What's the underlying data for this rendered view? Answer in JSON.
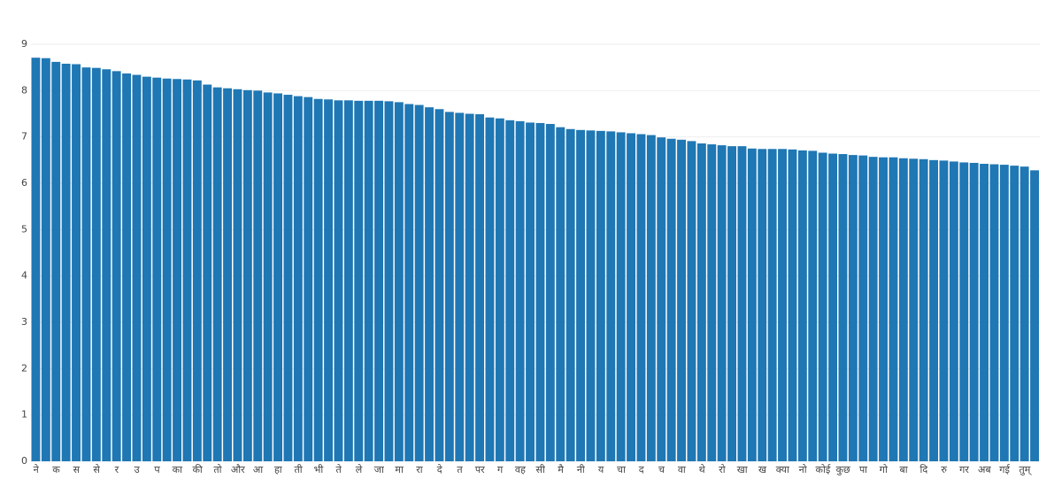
{
  "chart_data": {
    "type": "bar",
    "color": "#1f77b4",
    "grid": true,
    "ylim": [
      0,
      9
    ],
    "yticks": [
      0,
      1,
      2,
      3,
      4,
      5,
      6,
      7,
      8,
      9
    ],
    "categories": [
      "ने",
      null,
      "क",
      null,
      "स",
      null,
      "से",
      null,
      "र",
      null,
      "उ",
      null,
      "प",
      null,
      "का",
      null,
      "की",
      null,
      "तो",
      null,
      "और",
      null,
      "आ",
      null,
      "हा",
      null,
      "ती",
      null,
      "भी",
      null,
      "ते",
      null,
      "ले",
      null,
      "जा",
      null,
      "मा",
      null,
      "रा",
      null,
      "दे",
      null,
      "त",
      null,
      "पर",
      null,
      "ग",
      null,
      "वह",
      null,
      "सी",
      null,
      "मै",
      null,
      "नी",
      null,
      "य",
      null,
      "चा",
      null,
      "द",
      null,
      "च",
      null,
      "वा",
      null,
      "थे",
      null,
      "रो",
      null,
      "खा",
      null,
      "ख",
      null,
      "क्या",
      null,
      "नो",
      null,
      "कोई",
      null,
      "कुछ",
      null,
      "पा",
      null,
      "गो",
      null,
      "बा",
      null,
      "दि",
      null,
      "रु",
      null,
      "गर",
      null,
      "अब",
      null,
      "गई",
      null,
      "तुम्",
      null
    ],
    "values": [
      8.71,
      8.7,
      8.62,
      8.58,
      8.57,
      8.5,
      8.49,
      8.46,
      8.42,
      8.37,
      8.34,
      8.3,
      8.28,
      8.26,
      8.25,
      8.24,
      8.22,
      8.13,
      8.07,
      8.05,
      8.03,
      8.01,
      8.0,
      7.96,
      7.94,
      7.91,
      7.88,
      7.86,
      7.82,
      7.81,
      7.79,
      7.79,
      7.78,
      7.78,
      7.78,
      7.77,
      7.75,
      7.71,
      7.69,
      7.64,
      7.6,
      7.54,
      7.52,
      7.5,
      7.49,
      7.42,
      7.4,
      7.36,
      7.34,
      7.31,
      7.3,
      7.28,
      7.21,
      7.17,
      7.15,
      7.14,
      7.13,
      7.12,
      7.1,
      7.08,
      7.06,
      7.04,
      6.99,
      6.96,
      6.94,
      6.91,
      6.86,
      6.84,
      6.82,
      6.8,
      6.8,
      6.75,
      6.74,
      6.74,
      6.74,
      6.73,
      6.71,
      6.7,
      6.66,
      6.64,
      6.63,
      6.61,
      6.6,
      6.57,
      6.56,
      6.56,
      6.54,
      6.53,
      6.52,
      6.5,
      6.49,
      6.47,
      6.45,
      6.44,
      6.42,
      6.41,
      6.4,
      6.38,
      6.36,
      6.28
    ]
  }
}
